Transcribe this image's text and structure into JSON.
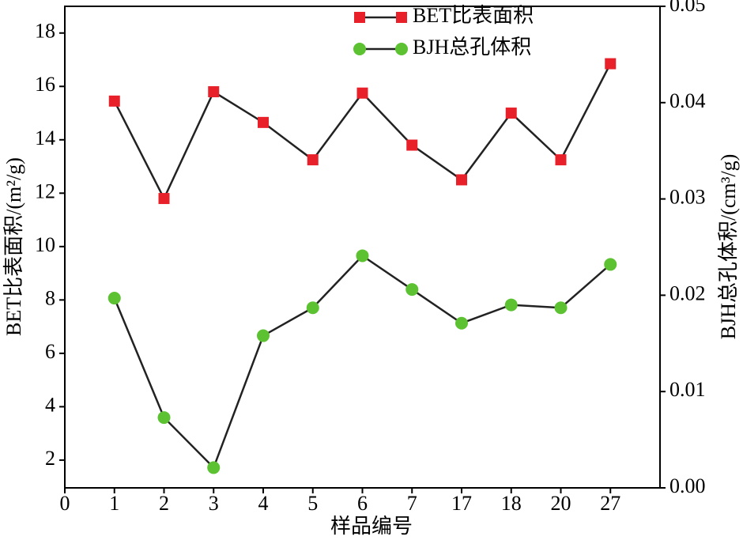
{
  "chart_data": {
    "type": "line",
    "x_label": "样品编号",
    "y_label": "BET比表面积/(m²/g)",
    "y2_label": "BJH总孔体积/(cm³/g)",
    "categories": [
      "0",
      "1",
      "2",
      "3",
      "4",
      "5",
      "6",
      "7",
      "17",
      "18",
      "20",
      "27"
    ],
    "ylim": [
      0.96,
      19
    ],
    "yticks": [
      2,
      4,
      6,
      8,
      10,
      12,
      14,
      16,
      18
    ],
    "y2lim": [
      0,
      0.05
    ],
    "y2ticks": [
      {
        "value": 0,
        "label": "0.00"
      },
      {
        "value": 0.01,
        "label": "0.01"
      },
      {
        "value": 0.02,
        "label": "0.02"
      },
      {
        "value": 0.03,
        "label": "0.03"
      },
      {
        "value": 0.04,
        "label": "0.04"
      },
      {
        "value": 0.05,
        "label": "0.05"
      }
    ],
    "legend": "top",
    "series": [
      {
        "name": "BET比表面积",
        "color": "#e8202a",
        "marker": "square",
        "axis": "y",
        "values": [
          null,
          15.45,
          11.8,
          15.8,
          14.65,
          13.25,
          15.75,
          13.8,
          12.5,
          15.0,
          13.25,
          16.85
        ]
      },
      {
        "name": "BJH总孔体积",
        "color": "#5cc232",
        "marker": "circle",
        "axis": "y2",
        "values": [
          null,
          0.0197,
          0.0073,
          0.0021,
          0.0158,
          0.0187,
          0.0241,
          0.0206,
          0.0171,
          0.019,
          0.0187,
          0.0232
        ]
      }
    ]
  }
}
